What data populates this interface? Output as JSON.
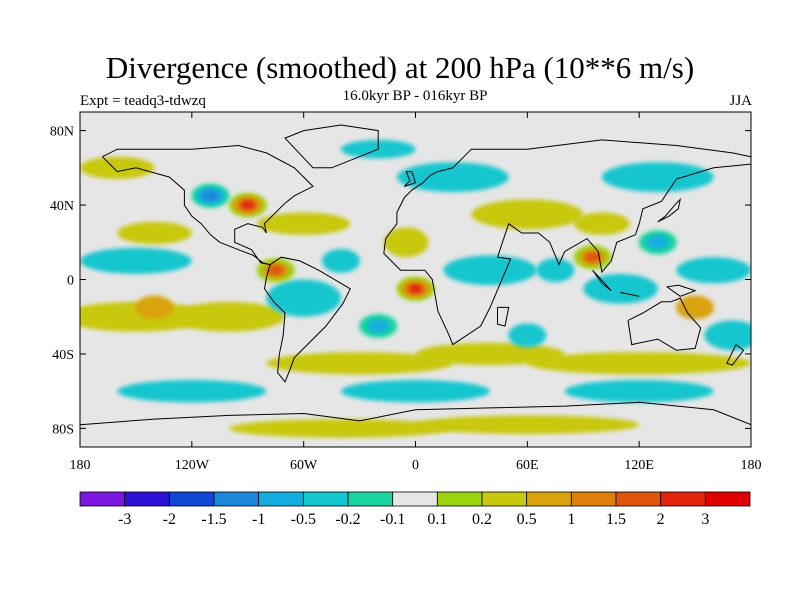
{
  "title": "Divergence (smoothed) at 200 hPa (10**6 m/s)",
  "subtitle_left": "Expt = teadq3-tdwzq",
  "subtitle_center": "16.0kyr BP - 016kyr BP",
  "subtitle_right": "JJA",
  "map": {
    "lat_ticks": [
      "80N",
      "40N",
      "0",
      "40S",
      "80S"
    ],
    "lon_ticks": [
      "180",
      "120W",
      "60W",
      "0",
      "60E",
      "120E",
      "180"
    ]
  },
  "colorbar": {
    "labels": [
      "-3",
      "-2",
      "-1.5",
      "-1",
      "-0.5",
      "-0.2",
      "-0.1",
      "0.1",
      "0.2",
      "0.5",
      "1",
      "1.5",
      "2",
      "3"
    ],
    "colors": [
      "#7b17e0",
      "#2d12d6",
      "#1247d6",
      "#1c86d8",
      "#12aee0",
      "#13c6cf",
      "#19d4a0",
      "#e6e6e6",
      "#9bd40f",
      "#c8c80f",
      "#d9a30c",
      "#de7f0c",
      "#df560b",
      "#e0250b",
      "#e00000"
    ]
  },
  "chart_data": {
    "type": "heatmap",
    "title": "Divergence (smoothed) at 200 hPa (10**6 m/s)",
    "subtitle": "16.0kyr BP - 016kyr BP",
    "season": "JJA",
    "experiment": "teadq3-tdwzq",
    "x_axis": {
      "range": [
        -180,
        180
      ],
      "ticks": [
        "180",
        "120W",
        "60W",
        "0",
        "60E",
        "120E",
        "180"
      ]
    },
    "y_axis": {
      "range": [
        -90,
        90
      ],
      "ticks": [
        "80N",
        "40N",
        "0",
        "40S",
        "80S"
      ]
    },
    "levels": [
      -3,
      -2,
      -1.5,
      -1,
      -0.5,
      -0.2,
      -0.1,
      0.1,
      0.2,
      0.5,
      1,
      1.5,
      2,
      3
    ],
    "features": [
      {
        "lon": 0,
        "lat": -5,
        "value": 2.5
      },
      {
        "lon": -90,
        "lat": 40,
        "value": 2.0
      },
      {
        "lon": -75,
        "lat": 5,
        "value": 1.5
      },
      {
        "lon": 95,
        "lat": 12,
        "value": 1.5
      },
      {
        "lon": -110,
        "lat": 45,
        "value": -1.5
      },
      {
        "lon": -20,
        "lat": -25,
        "value": -1.0
      },
      {
        "lon": 130,
        "lat": 20,
        "value": -1.0
      },
      {
        "lon": 75,
        "lat": 5,
        "value": -0.5
      },
      {
        "lon": -40,
        "lat": 10,
        "value": -0.5
      },
      {
        "lon": 60,
        "lat": -30,
        "value": -0.5
      },
      {
        "lon": 150,
        "lat": -15,
        "value": 0.5
      },
      {
        "lon": -140,
        "lat": -15,
        "value": 0.5
      }
    ]
  }
}
